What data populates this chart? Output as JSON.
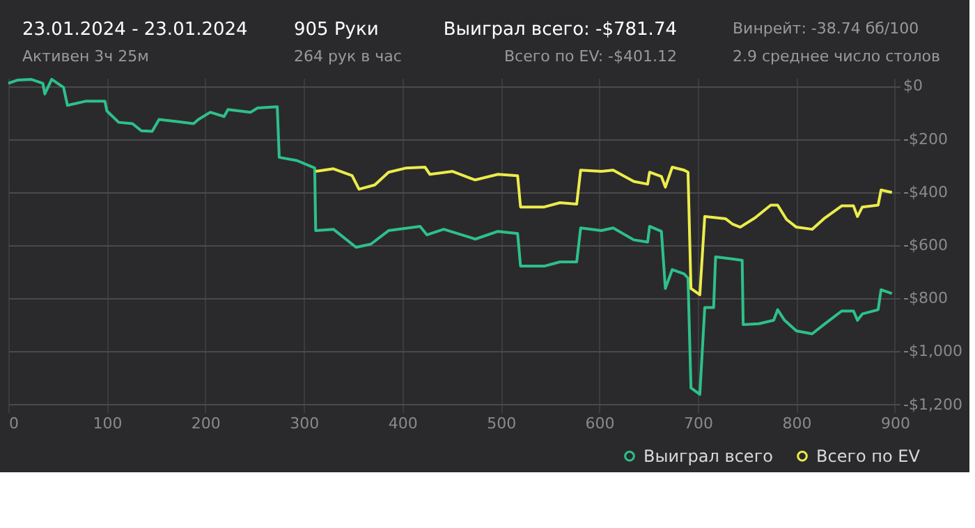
{
  "chart_data": {
    "type": "line",
    "title": "23.01.2024 - 23.01.2024",
    "subtitle": "Активен 3ч 25м",
    "annotations": [
      "905 Руки",
      "264 рук в час",
      "Выиграл всего: -$781.74",
      "Всего по EV: -$401.12",
      "Винрейт: -38.74 бб/100",
      "2.9 среднее число столов"
    ],
    "xlim": [
      0,
      905
    ],
    "xticks": [
      0,
      100,
      200,
      300,
      400,
      500,
      600,
      700,
      800,
      900
    ],
    "ylim": [
      -1230,
      30
    ],
    "yticks": [
      {
        "value": 0,
        "label": "$0"
      },
      {
        "value": -200,
        "label": "-$200"
      },
      {
        "value": -400,
        "label": "-$400"
      },
      {
        "value": -600,
        "label": "-$600"
      },
      {
        "value": -800,
        "label": "-$800"
      },
      {
        "value": -1000,
        "label": "-$1,000"
      },
      {
        "value": -1200,
        "label": "-$1,200"
      }
    ],
    "grid": true,
    "legend": "bottom right",
    "line_style": "solid",
    "marker": "none",
    "series": [
      {
        "name": "Выиграл всего",
        "color": "#2ec08a",
        "x": [
          0,
          9,
          23,
          35,
          37,
          44,
          56,
          60,
          79,
          98,
          100,
          112,
          126,
          135,
          146,
          153,
          188,
          193,
          205,
          219,
          223,
          246,
          253,
          273,
          275,
          293,
          311,
          312,
          330,
          353,
          368,
          386,
          418,
          425,
          442,
          470,
          474,
          497,
          517,
          520,
          544,
          560,
          577,
          581,
          602,
          614,
          635,
          649,
          651,
          663,
          667,
          674,
          686,
          690,
          693,
          702,
          707,
          716,
          718,
          735,
          745,
          746,
          762,
          777,
          781,
          788,
          800,
          816,
          828,
          846,
          858,
          862,
          867,
          883,
          886,
          897
        ],
        "values": [
          10,
          22,
          25,
          10,
          -30,
          25,
          -5,
          -73,
          -57,
          -57,
          -94,
          -137,
          -142,
          -169,
          -171,
          -126,
          -142,
          -126,
          -99,
          -115,
          -89,
          -99,
          -83,
          -78,
          -269,
          -281,
          -309,
          -545,
          -540,
          -608,
          -596,
          -545,
          -529,
          -561,
          -540,
          -572,
          -577,
          -548,
          -556,
          -679,
          -679,
          -663,
          -663,
          -535,
          -545,
          -535,
          -580,
          -588,
          -529,
          -548,
          -763,
          -692,
          -708,
          -724,
          -1138,
          -1162,
          -835,
          -835,
          -644,
          -652,
          -657,
          -899,
          -896,
          -883,
          -843,
          -883,
          -923,
          -934,
          -899,
          -848,
          -848,
          -883,
          -859,
          -843,
          -768,
          -782
        ]
      },
      {
        "name": "Всего по EV",
        "color": "#ecec4c",
        "x": [
          312,
          330,
          349,
          356,
          372,
          386,
          404,
          423,
          428,
          451,
          470,
          474,
          497,
          517,
          520,
          544,
          560,
          577,
          581,
          602,
          614,
          635,
          649,
          651,
          663,
          667,
          674,
          686,
          690,
          693,
          702,
          707,
          728,
          735,
          743,
          758,
          774,
          781,
          790,
          800,
          816,
          828,
          846,
          858,
          862,
          867,
          883,
          886,
          897
        ],
        "values": [
          -322,
          -312,
          -338,
          -389,
          -373,
          -325,
          -309,
          -306,
          -333,
          -322,
          -349,
          -354,
          -333,
          -338,
          -456,
          -456,
          -440,
          -445,
          -317,
          -322,
          -317,
          -360,
          -370,
          -325,
          -341,
          -381,
          -306,
          -317,
          -325,
          -763,
          -787,
          -492,
          -500,
          -520,
          -532,
          -497,
          -449,
          -449,
          -503,
          -532,
          -540,
          -500,
          -452,
          -452,
          -492,
          -456,
          -449,
          -392,
          -401
        ]
      }
    ]
  }
}
